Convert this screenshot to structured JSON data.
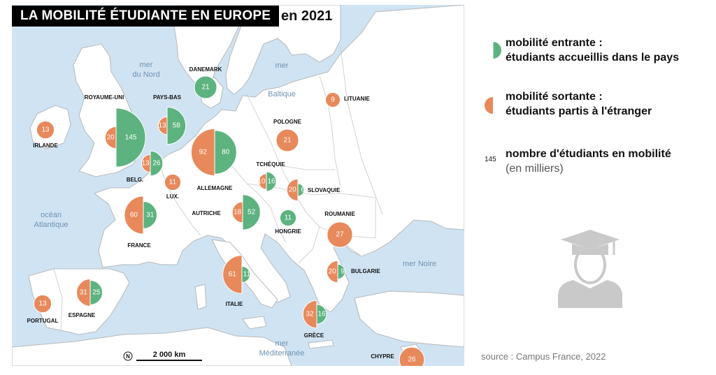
{
  "title": "LA MOBILITÉ ÉTUDIANTE EN EUROPE",
  "year": "en 2021",
  "colors": {
    "incoming": "#5db37f",
    "outgoing": "#e8895b",
    "sea": "#cfe3f3",
    "land": "#ffffff",
    "border": "#b8b8b8"
  },
  "seas": [
    {
      "line1": "mer",
      "line2": "du Nord"
    },
    {
      "line1": "mer",
      "line2": "Baltique"
    },
    {
      "line1": "océan",
      "line2": "Atlantique"
    },
    {
      "line1": "mer Noire",
      "line2": ""
    },
    {
      "line1": "mer",
      "line2": "Méditerranée"
    }
  ],
  "countries": [
    {
      "name": "ROYAUME-UNI",
      "outgoing": 20,
      "incoming": 145
    },
    {
      "name": "IRLANDE",
      "outgoing": 13,
      "incoming": null
    },
    {
      "name": "PAYS-BAS",
      "outgoing": 13,
      "incoming": 58
    },
    {
      "name": "DANEMARK",
      "outgoing": null,
      "incoming": 21
    },
    {
      "name": "BELG.",
      "outgoing": 13,
      "incoming": 26
    },
    {
      "name": "LUX.",
      "outgoing": 11,
      "incoming": null
    },
    {
      "name": "ALLEMAGNE",
      "outgoing": 92,
      "incoming": 80
    },
    {
      "name": "LITUANIE",
      "outgoing": 9,
      "incoming": null
    },
    {
      "name": "POLOGNE",
      "outgoing": 21,
      "incoming": null
    },
    {
      "name": "TCHÉQUIE",
      "outgoing": 10,
      "incoming": 16
    },
    {
      "name": "SLOVAQUIE",
      "outgoing": 20,
      "incoming": 6
    },
    {
      "name": "AUTRICHE",
      "outgoing": 18,
      "incoming": 52
    },
    {
      "name": "HONGRIE",
      "outgoing": null,
      "incoming": 11
    },
    {
      "name": "FRANCE",
      "outgoing": 60,
      "incoming": 31
    },
    {
      "name": "ROUMANIE",
      "outgoing": 27,
      "incoming": null
    },
    {
      "name": "BULGARIE",
      "outgoing": 20,
      "incoming": 9
    },
    {
      "name": "ESPAGNE",
      "outgoing": 31,
      "incoming": 25
    },
    {
      "name": "PORTUGAL",
      "outgoing": 13,
      "incoming": null
    },
    {
      "name": "ITALIE",
      "outgoing": 61,
      "incoming": 11
    },
    {
      "name": "GRÈCE",
      "outgoing": 32,
      "incoming": 16
    },
    {
      "name": "CHYPRE",
      "outgoing": 26,
      "incoming": null
    }
  ],
  "scale_bar": {
    "label": "2 000 km",
    "north": "N"
  },
  "legend": {
    "incoming_title": "mobilité entrante :",
    "incoming_sub": "étudiants accueillis dans le pays",
    "outgoing_title": "mobilité sortante :",
    "outgoing_sub": "étudiants partis à l'étranger",
    "number_example": "145",
    "number_title": "nombre d'étudiants en mobilité",
    "number_sub": "(en milliers)"
  },
  "source": "source : Campus France, 2022"
}
